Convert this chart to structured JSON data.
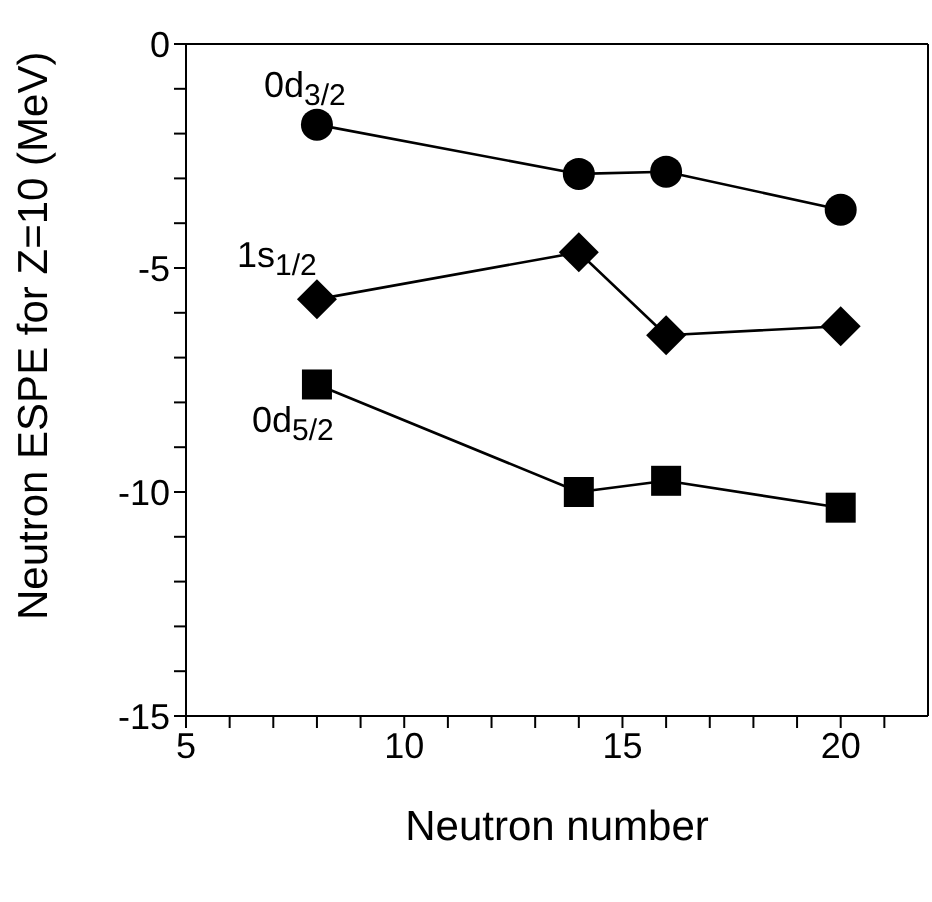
{
  "chart_data": {
    "type": "line",
    "xlabel": "Neutron number",
    "ylabel": "Neutron ESPE for Z=10 (MeV)",
    "x": [
      8,
      14,
      16,
      20
    ],
    "series": [
      {
        "name": "0d$_{3/2}$",
        "color": "#000000",
        "marker": "circle",
        "values": [
          -1.8,
          -2.9,
          -2.85,
          -3.7
        ]
      },
      {
        "name": "1s$_{1/2}$",
        "color": "#000000",
        "marker": "diamond",
        "values": [
          -5.7,
          -4.65,
          -6.5,
          -6.3
        ]
      },
      {
        "name": "0d$_{5/2}$",
        "color": "#000000",
        "marker": "square",
        "values": [
          -7.6,
          -10.0,
          -9.75,
          -10.35
        ]
      }
    ],
    "xlim": [
      5,
      22
    ],
    "xticks": [
      5,
      {
        "value": 6,
        "label": null
      },
      {
        "value": 7,
        "label": null
      },
      {
        "value": 8,
        "label": null
      },
      {
        "value": 9,
        "label": null
      },
      10,
      {
        "value": 11,
        "label": null
      },
      {
        "value": 12,
        "label": null
      },
      {
        "value": 13,
        "label": null
      },
      {
        "value": 14,
        "label": null
      },
      15,
      {
        "value": 16,
        "label": null
      },
      {
        "value": 17,
        "label": null
      },
      {
        "value": 18,
        "label": null
      },
      {
        "value": 19,
        "label": null
      },
      20,
      {
        "value": 21,
        "label": null
      }
    ],
    "ylim": [
      -15,
      0
    ],
    "yticks": [
      -15,
      {
        "value": -14,
        "label": null
      },
      {
        "value": -13,
        "label": null
      },
      {
        "value": -12,
        "label": null
      },
      {
        "value": -11,
        "label": null
      },
      -10,
      {
        "value": -9,
        "label": null
      },
      {
        "value": -8,
        "label": null
      },
      {
        "value": -7,
        "label": null
      },
      {
        "value": -6,
        "label": null
      },
      -5,
      {
        "value": -4,
        "label": null
      },
      {
        "value": -3,
        "label": null
      },
      {
        "value": -2,
        "label": null
      },
      {
        "value": -1,
        "label": null
      },
      0
    ],
    "grid": false,
    "legend": false,
    "line_style": "solid"
  }
}
